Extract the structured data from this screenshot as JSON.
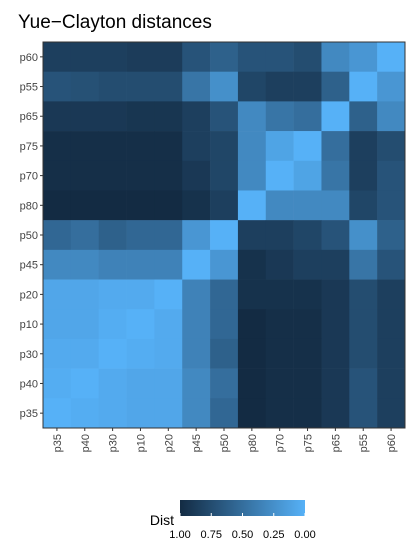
{
  "chart_data": {
    "type": "heatmap",
    "title": "Yue−Clayton distances",
    "x": [
      "p35",
      "p40",
      "p30",
      "p10",
      "p20",
      "p45",
      "p50",
      "p80",
      "p70",
      "p75",
      "p65",
      "p55",
      "p60"
    ],
    "y": [
      "p60",
      "p55",
      "p65",
      "p75",
      "p70",
      "p80",
      "p50",
      "p45",
      "p20",
      "p10",
      "p30",
      "p40",
      "p35"
    ],
    "values": [
      [
        0.85,
        0.85,
        0.85,
        0.87,
        0.87,
        0.7,
        0.6,
        0.7,
        0.7,
        0.75,
        0.3,
        0.2,
        0
      ],
      [
        0.7,
        0.72,
        0.75,
        0.75,
        0.75,
        0.45,
        0.25,
        0.8,
        0.85,
        0.85,
        0.6,
        0,
        0.2
      ],
      [
        0.9,
        0.9,
        0.9,
        0.92,
        0.92,
        0.85,
        0.7,
        0.3,
        0.45,
        0.5,
        0,
        0.6,
        0.3
      ],
      [
        0.97,
        0.97,
        0.97,
        0.97,
        0.97,
        0.85,
        0.8,
        0.3,
        0.1,
        0,
        0.5,
        0.85,
        0.75
      ],
      [
        0.97,
        0.97,
        0.97,
        0.97,
        0.97,
        0.9,
        0.8,
        0.3,
        0,
        0.1,
        0.45,
        0.85,
        0.7
      ],
      [
        1,
        1,
        1,
        1,
        1,
        0.95,
        0.85,
        0,
        0.3,
        0.3,
        0.3,
        0.8,
        0.7
      ],
      [
        0.55,
        0.5,
        0.6,
        0.55,
        0.55,
        0.2,
        0,
        0.85,
        0.85,
        0.8,
        0.7,
        0.25,
        0.6
      ],
      [
        0.3,
        0.3,
        0.35,
        0.35,
        0.35,
        0,
        0.2,
        0.95,
        0.9,
        0.85,
        0.85,
        0.45,
        0.7
      ],
      [
        0.08,
        0.08,
        0.05,
        0.05,
        0,
        0.35,
        0.55,
        0.95,
        0.95,
        0.95,
        0.9,
        0.75,
        0.85
      ],
      [
        0.08,
        0.08,
        0.03,
        0,
        0.05,
        0.35,
        0.55,
        1,
        0.97,
        0.97,
        0.9,
        0.75,
        0.85
      ],
      [
        0.05,
        0.05,
        0,
        0.03,
        0.05,
        0.35,
        0.6,
        1,
        0.97,
        0.97,
        0.9,
        0.75,
        0.85
      ],
      [
        0.03,
        0,
        0.05,
        0.08,
        0.08,
        0.3,
        0.5,
        1,
        0.97,
        0.97,
        0.9,
        0.7,
        0.85
      ],
      [
        0,
        0.03,
        0.05,
        0.08,
        0.08,
        0.3,
        0.55,
        1,
        0.97,
        0.97,
        0.9,
        0.7,
        0.85
      ]
    ],
    "legend_title": "Dist",
    "clim": [
      0,
      1
    ],
    "color_low": "#56B1F7",
    "color_high": "#132B43",
    "legend_reverse": true,
    "cticks": [
      {
        "value": 1,
        "label": "1.00"
      },
      {
        "value": 0.75,
        "label": "0.75"
      },
      {
        "value": 0.5,
        "label": "0.50"
      },
      {
        "value": 0.25,
        "label": "0.25"
      },
      {
        "value": 0,
        "label": "0.00"
      }
    ]
  }
}
